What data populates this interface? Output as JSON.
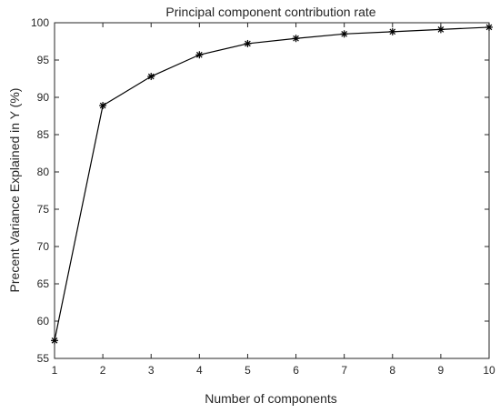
{
  "chart_data": {
    "type": "line",
    "title": "Principal component contribution rate",
    "xlabel": "Number of components",
    "ylabel": "Precent Variance Explained in Y (%)",
    "xlim": [
      1,
      10
    ],
    "ylim": [
      55,
      100
    ],
    "x_ticks": [
      "1",
      "2",
      "3",
      "4",
      "5",
      "6",
      "7",
      "8",
      "9",
      "10"
    ],
    "y_ticks": [
      "55",
      "60",
      "65",
      "70",
      "75",
      "80",
      "85",
      "90",
      "95",
      "100"
    ],
    "grid": false,
    "marker": "asterisk",
    "line_color": "#000000",
    "series": [
      {
        "x": [
          1,
          2,
          3,
          4,
          5,
          6,
          7,
          8,
          9,
          10
        ],
        "values": [
          57.4,
          88.9,
          92.8,
          95.7,
          97.2,
          97.9,
          98.5,
          98.8,
          99.1,
          99.4
        ]
      }
    ]
  }
}
